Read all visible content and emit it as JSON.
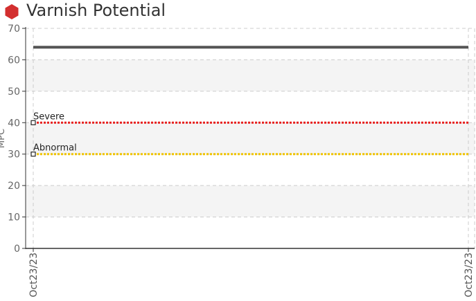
{
  "header": {
    "title": "Varnish Potential",
    "icon": "hexagon-icon",
    "icon_color": "#d32f2f"
  },
  "chart_data": {
    "type": "line",
    "title": "Varnish Potential",
    "xlabel": "",
    "ylabel": "MPC",
    "ylim": [
      0,
      70
    ],
    "yticks": [
      0,
      10,
      20,
      30,
      40,
      50,
      60,
      70
    ],
    "x_tick_labels": [
      "Oct23/23",
      "Oct23/23"
    ],
    "grid": true,
    "band_color": "#f4f4f4",
    "series": [
      {
        "name": "",
        "value": 64,
        "color": "#555555",
        "style": "solid"
      }
    ],
    "thresholds": [
      {
        "name": "Severe",
        "value": 40,
        "color": "#e8201f",
        "style": "dotted"
      },
      {
        "name": "Abnormal",
        "value": 30,
        "color": "#f0c400",
        "style": "dotted"
      }
    ]
  }
}
